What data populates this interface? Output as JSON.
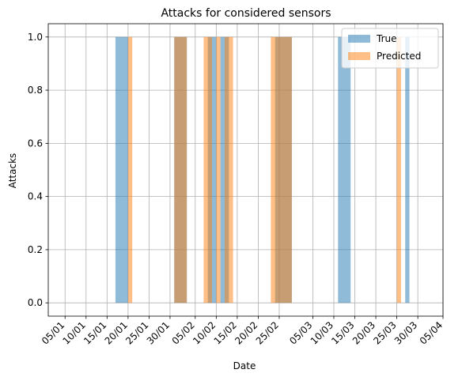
{
  "chart_data": {
    "type": "area",
    "title": "Attacks for considered sensors",
    "xlabel": "Date",
    "ylabel": "Attacks",
    "xlim": [
      "2017-01-01",
      "2017-04-05"
    ],
    "ylim": [
      -0.05,
      1.05
    ],
    "grid": true,
    "legend_position": "top-right",
    "x_tick_labels": [
      "05/01",
      "10/01",
      "15/01",
      "20/01",
      "25/01",
      "30/01",
      "05/02",
      "10/02",
      "15/02",
      "20/02",
      "25/02",
      "05/03",
      "10/03",
      "15/03",
      "20/03",
      "25/03",
      "30/03",
      "05/04"
    ],
    "x_tick_dates": [
      "2017-01-05",
      "2017-01-10",
      "2017-01-15",
      "2017-01-20",
      "2017-01-25",
      "2017-01-30",
      "2017-02-05",
      "2017-02-10",
      "2017-02-15",
      "2017-02-20",
      "2017-02-25",
      "2017-03-05",
      "2017-03-10",
      "2017-03-15",
      "2017-03-20",
      "2017-03-25",
      "2017-03-30",
      "2017-04-05"
    ],
    "y_ticks": [
      0.0,
      0.2,
      0.4,
      0.6,
      0.8,
      1.0
    ],
    "y_tick_labels": [
      "0.0",
      "0.2",
      "0.4",
      "0.6",
      "0.8",
      "1.0"
    ],
    "series": [
      {
        "name": "True",
        "color": "#1f77b4",
        "opacity": 0.5,
        "intervals": [
          [
            "2017-01-17",
            "2017-01-20"
          ],
          [
            "2017-01-31",
            "2017-02-03"
          ],
          [
            "2017-02-08",
            "2017-02-10"
          ],
          [
            "2017-02-11",
            "2017-02-12"
          ],
          [
            "2017-02-12",
            "2017-02-13"
          ],
          [
            "2017-02-24",
            "2017-02-28"
          ],
          [
            "2017-03-11",
            "2017-03-14"
          ],
          [
            "2017-03-27",
            "2017-03-28"
          ]
        ]
      },
      {
        "name": "Predicted",
        "color": "#ff7f0e",
        "opacity": 0.5,
        "intervals": [
          [
            "2017-01-20",
            "2017-01-21"
          ],
          [
            "2017-01-31",
            "2017-02-03"
          ],
          [
            "2017-02-07",
            "2017-02-09"
          ],
          [
            "2017-02-10",
            "2017-02-11"
          ],
          [
            "2017-02-12",
            "2017-02-14"
          ],
          [
            "2017-02-23",
            "2017-02-28"
          ],
          [
            "2017-03-25",
            "2017-03-26"
          ]
        ]
      }
    ]
  }
}
